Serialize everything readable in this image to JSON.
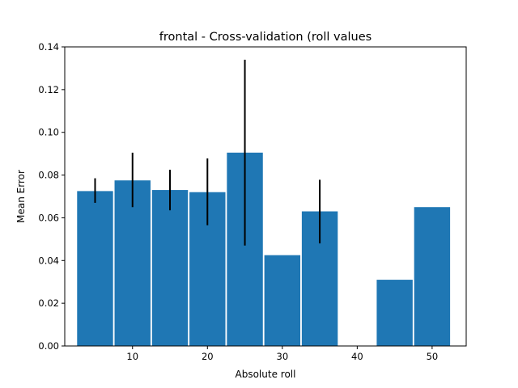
{
  "chart_data": {
    "type": "bar",
    "title": "frontal - Cross-validation (roll values",
    "xlabel": "Absolute roll",
    "ylabel": "Mean Error",
    "x": [
      5,
      10,
      15,
      20,
      25,
      30,
      35,
      40,
      45,
      50
    ],
    "values": [
      0.0725,
      0.0775,
      0.073,
      0.072,
      0.0905,
      0.0425,
      0.063,
      0.0,
      0.031,
      0.065
    ],
    "error_low": [
      0.067,
      0.065,
      0.0635,
      0.0565,
      0.047,
      null,
      0.048,
      null,
      null,
      null
    ],
    "error_high": [
      0.0785,
      0.0905,
      0.0825,
      0.0878,
      0.134,
      null,
      0.0778,
      null,
      null,
      null
    ],
    "bar_width": 4.8,
    "xlim": [
      0.95,
      54.55
    ],
    "ylim": [
      0,
      0.14
    ],
    "xticks": [
      10,
      20,
      30,
      40,
      50
    ],
    "yticks": [
      0.0,
      0.02,
      0.04,
      0.06,
      0.08,
      0.1,
      0.12,
      0.14
    ],
    "xtick_labels": [
      "10",
      "20",
      "30",
      "40",
      "50"
    ],
    "ytick_labels": [
      "0.00",
      "0.02",
      "0.04",
      "0.06",
      "0.08",
      "0.10",
      "0.12",
      "0.14"
    ],
    "bar_color": "#1f77b4",
    "errorbar_color": "#000000",
    "grid": false
  }
}
